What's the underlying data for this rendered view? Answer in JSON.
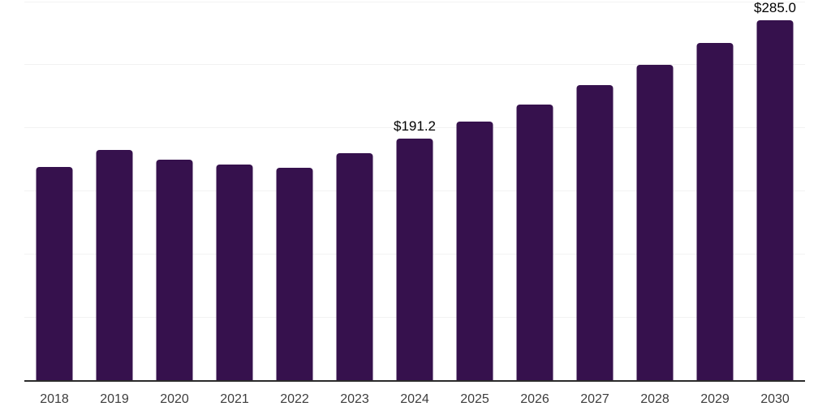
{
  "chart_data": {
    "type": "bar",
    "title": "",
    "xlabel": "",
    "ylabel": "",
    "categories": [
      "2018",
      "2019",
      "2020",
      "2021",
      "2022",
      "2023",
      "2024",
      "2025",
      "2026",
      "2027",
      "2028",
      "2029",
      "2030"
    ],
    "values": [
      169.0,
      182.5,
      174.8,
      171.0,
      168.3,
      180.0,
      191.2,
      204.4,
      218.4,
      233.5,
      249.5,
      266.7,
      285.0
    ],
    "data_labels": [
      null,
      null,
      null,
      null,
      null,
      null,
      "$191.2",
      null,
      null,
      null,
      null,
      null,
      "$285.0"
    ],
    "ylim": [
      0,
      300
    ],
    "grid_interval": 50,
    "grid_visible": true,
    "y_tick_labels_visible": false,
    "legend_visible": false,
    "colors": {
      "bar": "#36114D",
      "grid_line": "#f2f2f2",
      "axis_line": "#2b2b2b",
      "data_label_text": "#000000",
      "tick_label_text": "#3d3d3d",
      "background": "#ffffff"
    }
  }
}
